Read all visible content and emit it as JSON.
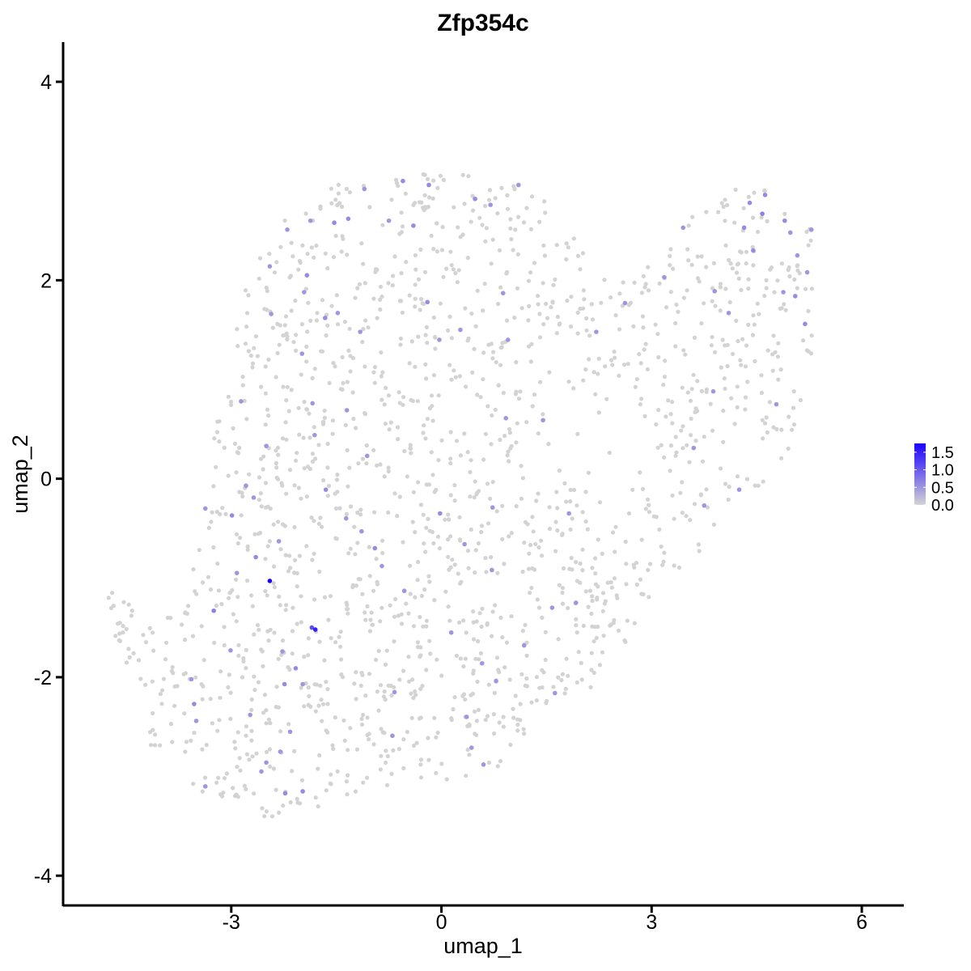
{
  "chart_data": {
    "type": "scatter",
    "title": "Zfp354c",
    "xlabel": "umap_1",
    "ylabel": "umap_2",
    "xlim": [
      -5.4,
      6.6
    ],
    "ylim": [
      -4.3,
      4.4
    ],
    "xticks": [
      -3,
      0,
      3,
      6
    ],
    "yticks": [
      -4,
      -2,
      0,
      2,
      4
    ],
    "x_tick_labels": [
      "-3",
      "0",
      "3",
      "6"
    ],
    "y_tick_labels": [
      "-4",
      "-2",
      "0",
      "2",
      "4"
    ],
    "grid": false,
    "legend": {
      "placement": "right",
      "type": "colorbar",
      "labels": [
        "1.5",
        "1.0",
        "0.5",
        "0.0"
      ],
      "values": [
        1.5,
        1.0,
        0.5,
        0.0
      ],
      "range": [
        0.0,
        1.75
      ],
      "low_color": "#d3d3d3",
      "high_color": "#1a00ff"
    },
    "background_point_color": "#d3d3d3",
    "expressing_points": [
      {
        "x": -2.45,
        "y": -1.03,
        "v": 1.75
      },
      {
        "x": -1.8,
        "y": -1.52,
        "v": 1.5
      },
      {
        "x": -1.85,
        "y": -1.5,
        "v": 1.1
      },
      {
        "x": -2.65,
        "y": -0.79,
        "v": 0.6
      },
      {
        "x": -2.99,
        "y": -0.37,
        "v": 0.6
      },
      {
        "x": -3.25,
        "y": -1.33,
        "v": 0.7
      },
      {
        "x": -3.01,
        "y": -1.73,
        "v": 0.5
      },
      {
        "x": -2.92,
        "y": -0.95,
        "v": 0.5
      },
      {
        "x": -3.53,
        "y": -2.27,
        "v": 0.6
      },
      {
        "x": -3.5,
        "y": -2.44,
        "v": 0.5
      },
      {
        "x": -3.37,
        "y": -3.1,
        "v": 0.5
      },
      {
        "x": -3.57,
        "y": -2.02,
        "v": 0.5
      },
      {
        "x": -3.37,
        "y": -0.3,
        "v": 0.5
      },
      {
        "x": -2.86,
        "y": 0.78,
        "v": 0.5
      },
      {
        "x": -2.79,
        "y": -0.07,
        "v": 0.5
      },
      {
        "x": -2.68,
        "y": -0.19,
        "v": 0.5
      },
      {
        "x": -2.5,
        "y": 0.33,
        "v": 0.5
      },
      {
        "x": -2.32,
        "y": -0.63,
        "v": 0.5
      },
      {
        "x": -2.27,
        "y": -1.74,
        "v": 0.5
      },
      {
        "x": -2.08,
        "y": -1.91,
        "v": 0.6
      },
      {
        "x": -2.24,
        "y": -2.07,
        "v": 0.6
      },
      {
        "x": -1.98,
        "y": -2.07,
        "v": 0.5
      },
      {
        "x": -2.5,
        "y": -2.86,
        "v": 0.5
      },
      {
        "x": -2.3,
        "y": -2.75,
        "v": 0.5
      },
      {
        "x": -2.57,
        "y": -2.95,
        "v": 0.5
      },
      {
        "x": -2.23,
        "y": -3.17,
        "v": 0.6
      },
      {
        "x": -1.98,
        "y": -3.15,
        "v": 0.6
      },
      {
        "x": -2.16,
        "y": -2.55,
        "v": 0.5
      },
      {
        "x": -2.73,
        "y": -2.38,
        "v": 0.5
      },
      {
        "x": -2.2,
        "y": 2.51,
        "v": 0.5
      },
      {
        "x": -2.45,
        "y": 2.14,
        "v": 0.5
      },
      {
        "x": -2.43,
        "y": 1.66,
        "v": 0.5
      },
      {
        "x": -1.92,
        "y": 2.05,
        "v": 0.6
      },
      {
        "x": -1.96,
        "y": 1.88,
        "v": 0.5
      },
      {
        "x": -1.87,
        "y": 2.6,
        "v": 0.5
      },
      {
        "x": -1.53,
        "y": 2.58,
        "v": 0.6
      },
      {
        "x": -1.33,
        "y": 2.62,
        "v": 0.6
      },
      {
        "x": -1.66,
        "y": 1.62,
        "v": 0.6
      },
      {
        "x": -1.48,
        "y": 1.67,
        "v": 0.5
      },
      {
        "x": -1.16,
        "y": 1.48,
        "v": 0.5
      },
      {
        "x": -1.99,
        "y": 1.26,
        "v": 0.5
      },
      {
        "x": -1.84,
        "y": 0.76,
        "v": 0.5
      },
      {
        "x": -1.35,
        "y": 0.69,
        "v": 0.5
      },
      {
        "x": -1.81,
        "y": 0.44,
        "v": 0.5
      },
      {
        "x": -1.06,
        "y": 0.23,
        "v": 0.5
      },
      {
        "x": -1.14,
        "y": -0.53,
        "v": 0.5
      },
      {
        "x": -0.95,
        "y": -0.7,
        "v": 0.6
      },
      {
        "x": -0.85,
        "y": -0.88,
        "v": 0.5
      },
      {
        "x": -1.36,
        "y": -0.4,
        "v": 0.5
      },
      {
        "x": -1.65,
        "y": -0.11,
        "v": 0.6
      },
      {
        "x": -1.1,
        "y": 2.92,
        "v": 0.5
      },
      {
        "x": -0.75,
        "y": 2.6,
        "v": 0.5
      },
      {
        "x": -0.55,
        "y": 3.0,
        "v": 0.6
      },
      {
        "x": -0.18,
        "y": 2.96,
        "v": 0.6
      },
      {
        "x": -0.4,
        "y": 2.55,
        "v": 0.6
      },
      {
        "x": 0.48,
        "y": 2.82,
        "v": 0.6
      },
      {
        "x": 0.7,
        "y": 2.76,
        "v": 0.5
      },
      {
        "x": 1.1,
        "y": 2.96,
        "v": 0.5
      },
      {
        "x": -0.2,
        "y": 1.78,
        "v": 0.6
      },
      {
        "x": -0.03,
        "y": 1.4,
        "v": 0.5
      },
      {
        "x": 0.27,
        "y": 1.5,
        "v": 0.5
      },
      {
        "x": 0.88,
        "y": 1.87,
        "v": 0.5
      },
      {
        "x": 0.95,
        "y": 1.4,
        "v": 0.5
      },
      {
        "x": 0.92,
        "y": 0.61,
        "v": 0.5
      },
      {
        "x": 1.45,
        "y": 0.59,
        "v": 0.5
      },
      {
        "x": -0.02,
        "y": -0.35,
        "v": 0.6
      },
      {
        "x": 0.73,
        "y": -0.29,
        "v": 0.5
      },
      {
        "x": 1.82,
        "y": -0.35,
        "v": 0.5
      },
      {
        "x": 0.33,
        "y": -0.66,
        "v": 0.5
      },
      {
        "x": 0.72,
        "y": -0.92,
        "v": 0.5
      },
      {
        "x": -0.53,
        "y": -1.13,
        "v": 0.5
      },
      {
        "x": 0.14,
        "y": -1.55,
        "v": 0.5
      },
      {
        "x": 0.58,
        "y": -1.86,
        "v": 0.5
      },
      {
        "x": 0.78,
        "y": -2.04,
        "v": 0.5
      },
      {
        "x": 1.18,
        "y": -1.68,
        "v": 0.5
      },
      {
        "x": 1.58,
        "y": -1.3,
        "v": 0.5
      },
      {
        "x": 1.92,
        "y": -1.25,
        "v": 0.5
      },
      {
        "x": 1.62,
        "y": -2.16,
        "v": 0.5
      },
      {
        "x": -0.67,
        "y": -2.15,
        "v": 0.5
      },
      {
        "x": -0.7,
        "y": -2.59,
        "v": 0.5
      },
      {
        "x": 0.36,
        "y": -2.4,
        "v": 0.5
      },
      {
        "x": 0.43,
        "y": -2.71,
        "v": 0.5
      },
      {
        "x": 0.6,
        "y": -2.88,
        "v": 0.5
      },
      {
        "x": 2.21,
        "y": 1.48,
        "v": 0.5
      },
      {
        "x": 2.62,
        "y": 1.77,
        "v": 0.5
      },
      {
        "x": 3.18,
        "y": 2.03,
        "v": 0.5
      },
      {
        "x": 3.45,
        "y": 2.53,
        "v": 0.5
      },
      {
        "x": 3.9,
        "y": 1.89,
        "v": 0.5
      },
      {
        "x": 4.1,
        "y": 1.67,
        "v": 0.5
      },
      {
        "x": 3.88,
        "y": 0.88,
        "v": 0.5
      },
      {
        "x": 3.6,
        "y": 0.31,
        "v": 0.5
      },
      {
        "x": 3.75,
        "y": -0.27,
        "v": 0.5
      },
      {
        "x": 4.25,
        "y": -0.11,
        "v": 0.5
      },
      {
        "x": 4.78,
        "y": 0.75,
        "v": 0.5
      },
      {
        "x": 4.4,
        "y": 2.78,
        "v": 0.6
      },
      {
        "x": 4.62,
        "y": 2.86,
        "v": 0.6
      },
      {
        "x": 4.58,
        "y": 2.67,
        "v": 0.7
      },
      {
        "x": 4.9,
        "y": 2.6,
        "v": 0.6
      },
      {
        "x": 4.32,
        "y": 2.53,
        "v": 0.6
      },
      {
        "x": 4.45,
        "y": 2.3,
        "v": 0.6
      },
      {
        "x": 4.98,
        "y": 2.48,
        "v": 0.5
      },
      {
        "x": 5.08,
        "y": 2.25,
        "v": 0.5
      },
      {
        "x": 5.05,
        "y": 1.84,
        "v": 0.6
      },
      {
        "x": 5.19,
        "y": 1.56,
        "v": 0.6
      },
      {
        "x": 5.22,
        "y": 2.08,
        "v": 0.5
      },
      {
        "x": 4.88,
        "y": 1.88,
        "v": 0.5
      },
      {
        "x": 5.28,
        "y": 2.51,
        "v": 0.5
      }
    ]
  }
}
